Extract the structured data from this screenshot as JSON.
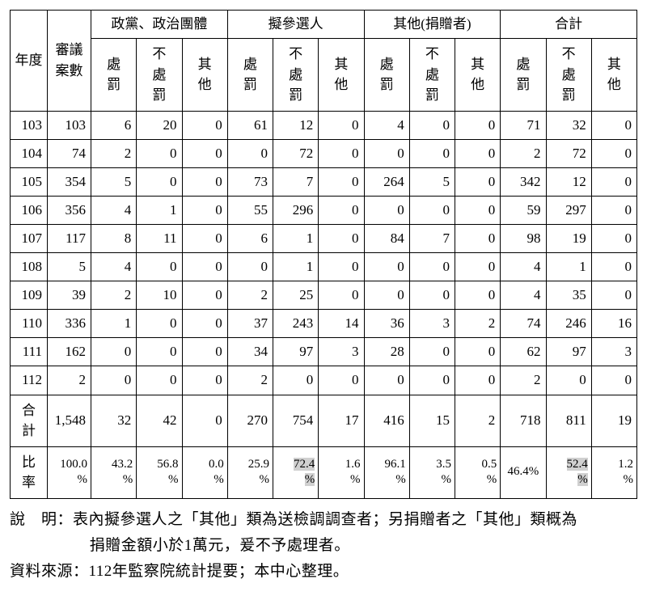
{
  "table": {
    "header": {
      "year": "年度",
      "caseCount": "審議案數",
      "group1": "政黨、政治團體",
      "group2": "擬參選人",
      "group3": "其他(捐贈者)",
      "group4": "合計",
      "sub_punish": "處罰",
      "sub_nopunish": "不處罰",
      "sub_other": "其他"
    },
    "rows": [
      {
        "year": "103",
        "count": "103",
        "g1": [
          "6",
          "20",
          "0"
        ],
        "g2": [
          "61",
          "12",
          "0"
        ],
        "g3": [
          "4",
          "0",
          "0"
        ],
        "g4": [
          "71",
          "32",
          "0"
        ]
      },
      {
        "year": "104",
        "count": "74",
        "g1": [
          "2",
          "0",
          "0"
        ],
        "g2": [
          "0",
          "72",
          "0"
        ],
        "g3": [
          "0",
          "0",
          "0"
        ],
        "g4": [
          "2",
          "72",
          "0"
        ]
      },
      {
        "year": "105",
        "count": "354",
        "g1": [
          "5",
          "0",
          "0"
        ],
        "g2": [
          "73",
          "7",
          "0"
        ],
        "g3": [
          "264",
          "5",
          "0"
        ],
        "g4": [
          "342",
          "12",
          "0"
        ]
      },
      {
        "year": "106",
        "count": "356",
        "g1": [
          "4",
          "1",
          "0"
        ],
        "g2": [
          "55",
          "296",
          "0"
        ],
        "g3": [
          "0",
          "0",
          "0"
        ],
        "g4": [
          "59",
          "297",
          "0"
        ]
      },
      {
        "year": "107",
        "count": "117",
        "g1": [
          "8",
          "11",
          "0"
        ],
        "g2": [
          "6",
          "1",
          "0"
        ],
        "g3": [
          "84",
          "7",
          "0"
        ],
        "g4": [
          "98",
          "19",
          "0"
        ]
      },
      {
        "year": "108",
        "count": "5",
        "g1": [
          "4",
          "0",
          "0"
        ],
        "g2": [
          "0",
          "1",
          "0"
        ],
        "g3": [
          "0",
          "0",
          "0"
        ],
        "g4": [
          "4",
          "1",
          "0"
        ]
      },
      {
        "year": "109",
        "count": "39",
        "g1": [
          "2",
          "10",
          "0"
        ],
        "g2": [
          "2",
          "25",
          "0"
        ],
        "g3": [
          "0",
          "0",
          "0"
        ],
        "g4": [
          "4",
          "35",
          "0"
        ]
      },
      {
        "year": "110",
        "count": "336",
        "g1": [
          "1",
          "0",
          "0"
        ],
        "g2": [
          "37",
          "243",
          "14"
        ],
        "g3": [
          "36",
          "3",
          "2"
        ],
        "g4": [
          "74",
          "246",
          "16"
        ]
      },
      {
        "year": "111",
        "count": "162",
        "g1": [
          "0",
          "0",
          "0"
        ],
        "g2": [
          "34",
          "97",
          "3"
        ],
        "g3": [
          "28",
          "0",
          "0"
        ],
        "g4": [
          "62",
          "97",
          "3"
        ]
      },
      {
        "year": "112",
        "count": "2",
        "g1": [
          "0",
          "0",
          "0"
        ],
        "g2": [
          "2",
          "0",
          "0"
        ],
        "g3": [
          "0",
          "0",
          "0"
        ],
        "g4": [
          "2",
          "0",
          "0"
        ]
      }
    ],
    "totalRow": {
      "label": "合計",
      "count": "1,548",
      "g1": [
        "32",
        "42",
        "0"
      ],
      "g2": [
        "270",
        "754",
        "17"
      ],
      "g3": [
        "416",
        "15",
        "2"
      ],
      "g4": [
        "718",
        "811",
        "19"
      ]
    },
    "ratioRow": {
      "label": "比率",
      "count": "100.0%",
      "g1": [
        "43.2%",
        "56.8%",
        "0.0%"
      ],
      "g2": [
        "25.9%",
        "72.4%",
        "1.6%"
      ],
      "g3": [
        "96.1%",
        "3.5%",
        "0.5%"
      ],
      "g4": [
        "46.4%",
        "52.4%",
        "1.2%"
      ],
      "highlight_g2_idx": 1,
      "highlight_g4_idx": 1
    }
  },
  "notes": {
    "line1a": "說　明：表內擬參選人之「其他」類為送檢調調查者；另捐贈者之「其他」類概為",
    "line1b": "捐贈金額小於1萬元，爰不予處理者。",
    "line2": "資料來源：112年監察院統計提要；本中心整理。"
  }
}
